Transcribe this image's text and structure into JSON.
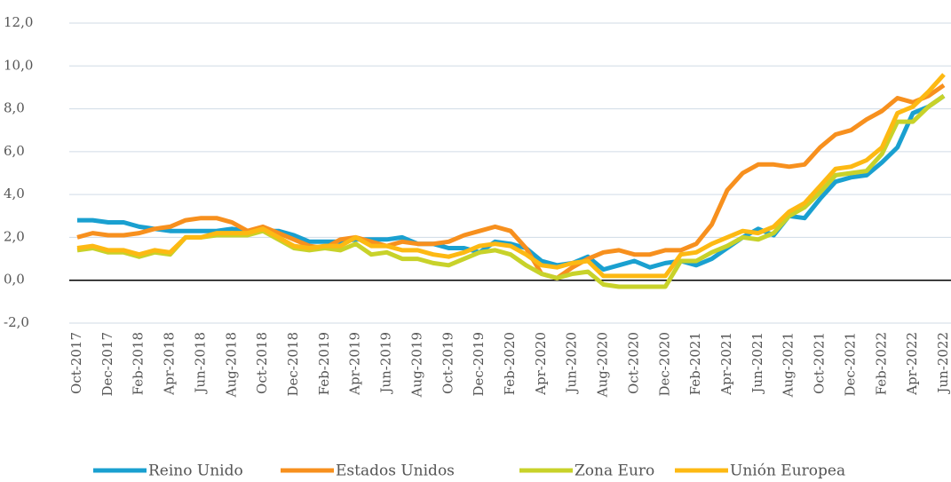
{
  "chart_data": {
    "type": "line",
    "categories": [
      "Oct-2017",
      null,
      "Dec-2017",
      null,
      "Feb-2018",
      null,
      "Apr-2018",
      null,
      "Jun-2018",
      null,
      "Aug-2018",
      null,
      "Oct-2018",
      null,
      "Dec-2018",
      null,
      "Feb-2019",
      null,
      "Apr-2019",
      null,
      "Jun-2019",
      null,
      "Aug-2019",
      null,
      "Oct-2019",
      null,
      "Dec-2019",
      null,
      "Feb-2020",
      null,
      "Apr-2020",
      null,
      "Jun-2020",
      null,
      "Aug-2020",
      null,
      "Oct-2020",
      null,
      "Dec-2020",
      null,
      "Feb-2021",
      null,
      "Apr-2021",
      null,
      "Jun-2021",
      null,
      "Aug-2021",
      null,
      "Oct-2021",
      null,
      "Dec-2021",
      null,
      "Feb-2022",
      null,
      "Apr-2022",
      null,
      "Jun-2022"
    ],
    "series": [
      {
        "name": "Reino Unido",
        "color": "#1aa0d0",
        "values": [
          2.8,
          2.8,
          2.7,
          2.7,
          2.5,
          2.4,
          2.3,
          2.3,
          2.3,
          2.3,
          2.4,
          2.3,
          2.3,
          2.3,
          2.1,
          1.8,
          1.8,
          1.8,
          1.9,
          1.9,
          1.9,
          2.0,
          1.7,
          1.7,
          1.5,
          1.5,
          1.3,
          1.8,
          1.7,
          1.5,
          0.9,
          0.7,
          0.8,
          1.1,
          0.5,
          0.7,
          0.9,
          0.6,
          0.8,
          0.9,
          0.7,
          1.0,
          1.5,
          2.0,
          2.4,
          2.1,
          3.0,
          2.9,
          3.8,
          4.6,
          4.8,
          4.9,
          5.5,
          6.2,
          7.8,
          8.1,
          8.6
        ]
      },
      {
        "name": "Estados Unidos",
        "color": "#f7901e",
        "values": [
          2.0,
          2.2,
          2.1,
          2.1,
          2.2,
          2.4,
          2.5,
          2.8,
          2.9,
          2.9,
          2.7,
          2.3,
          2.5,
          2.2,
          1.9,
          1.6,
          1.5,
          1.9,
          2.0,
          1.8,
          1.6,
          1.8,
          1.7,
          1.7,
          1.8,
          2.1,
          2.3,
          2.5,
          2.3,
          1.5,
          0.3,
          0.1,
          0.6,
          1.0,
          1.3,
          1.4,
          1.2,
          1.2,
          1.4,
          1.4,
          1.7,
          2.6,
          4.2,
          5.0,
          5.4,
          5.4,
          5.3,
          5.4,
          6.2,
          6.8,
          7.0,
          7.5,
          7.9,
          8.5,
          8.3,
          8.6,
          9.1
        ]
      },
      {
        "name": "Zona Euro",
        "color": "#c8d22a",
        "values": [
          1.4,
          1.5,
          1.3,
          1.3,
          1.1,
          1.3,
          1.2,
          2.0,
          2.0,
          2.1,
          2.1,
          2.1,
          2.3,
          1.9,
          1.5,
          1.4,
          1.5,
          1.4,
          1.7,
          1.2,
          1.3,
          1.0,
          1.0,
          0.8,
          0.7,
          1.0,
          1.3,
          1.4,
          1.2,
          0.7,
          0.3,
          0.1,
          0.3,
          0.4,
          -0.2,
          -0.3,
          -0.3,
          -0.3,
          -0.3,
          0.9,
          0.9,
          1.3,
          1.6,
          2.0,
          1.9,
          2.2,
          3.0,
          3.4,
          4.1,
          4.9,
          5.0,
          5.1,
          5.9,
          7.4,
          7.4,
          8.1,
          8.6
        ]
      },
      {
        "name": "Unión Europea",
        "color": "#fdb913",
        "values": [
          1.5,
          1.6,
          1.4,
          1.4,
          1.2,
          1.4,
          1.3,
          2.0,
          2.0,
          2.2,
          2.2,
          2.2,
          2.4,
          2.0,
          1.6,
          1.5,
          1.6,
          1.6,
          2.0,
          1.6,
          1.6,
          1.4,
          1.4,
          1.2,
          1.1,
          1.3,
          1.6,
          1.7,
          1.6,
          1.2,
          0.7,
          0.6,
          0.8,
          0.9,
          0.2,
          0.2,
          0.2,
          0.2,
          0.2,
          1.2,
          1.3,
          1.7,
          2.0,
          2.3,
          2.2,
          2.5,
          3.2,
          3.6,
          4.4,
          5.2,
          5.3,
          5.6,
          6.2,
          7.8,
          8.1,
          8.8,
          9.6
        ]
      }
    ],
    "ylim": [
      -2,
      12
    ],
    "yticks": [
      {
        "value": -2,
        "label": "-2,0"
      },
      {
        "value": 0,
        "label": "0,0"
      },
      {
        "value": 2,
        "label": "2,0"
      },
      {
        "value": 4,
        "label": "4,0"
      },
      {
        "value": 6,
        "label": "6,0"
      },
      {
        "value": 8,
        "label": "8,0"
      },
      {
        "value": 10,
        "label": "10,0"
      },
      {
        "value": 12,
        "label": "12,0"
      }
    ],
    "grid": true,
    "legend": "bottom"
  }
}
